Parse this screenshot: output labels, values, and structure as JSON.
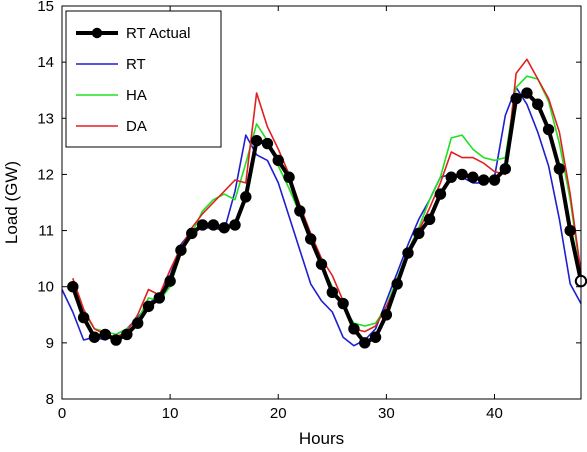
{
  "chart_data": {
    "type": "line",
    "title": "",
    "xlabel": "Hours",
    "ylabel": "Load (GW)",
    "xlim": [
      0,
      48
    ],
    "ylim": [
      8,
      15
    ],
    "xticks": [
      0,
      10,
      20,
      30,
      40
    ],
    "yticks": [
      8,
      9,
      10,
      11,
      12,
      13,
      14,
      15
    ],
    "grid": false,
    "legend_position": "top-left",
    "series": [
      {
        "name": "RT Actual",
        "color": "#000000",
        "marker": "circle",
        "x": [
          1,
          2,
          3,
          4,
          5,
          6,
          7,
          8,
          9,
          10,
          11,
          12,
          13,
          14,
          15,
          16,
          17,
          18,
          19,
          20,
          21,
          22,
          23,
          24,
          25,
          26,
          27,
          28,
          29,
          30,
          31,
          32,
          33,
          34,
          35,
          36,
          37,
          38,
          39,
          40,
          41,
          42,
          43,
          44,
          45,
          46,
          47,
          48
        ],
        "values": [
          10.0,
          9.45,
          9.1,
          9.15,
          9.05,
          9.15,
          9.35,
          9.65,
          9.8,
          10.1,
          10.65,
          10.95,
          11.1,
          11.1,
          11.05,
          11.1,
          11.6,
          12.6,
          12.55,
          12.25,
          11.95,
          11.35,
          10.85,
          10.4,
          9.9,
          9.7,
          9.25,
          9.0,
          9.1,
          9.5,
          10.05,
          10.6,
          10.95,
          11.2,
          11.65,
          11.95,
          12.0,
          11.95,
          11.9,
          11.9,
          12.1,
          13.35,
          13.45,
          13.25,
          12.8,
          12.1,
          11.0,
          10.1
        ]
      },
      {
        "name": "RT",
        "color": "#1f1fcf",
        "x": [
          0,
          1,
          2,
          3,
          4,
          5,
          6,
          7,
          8,
          9,
          10,
          11,
          12,
          13,
          14,
          15,
          16,
          17,
          18,
          19,
          20,
          21,
          22,
          23,
          24,
          25,
          26,
          27,
          28,
          29,
          30,
          31,
          32,
          33,
          34,
          35,
          36,
          37,
          38,
          39,
          40,
          41,
          42,
          43,
          44,
          45,
          46,
          47,
          48
        ],
        "values": [
          9.95,
          9.55,
          9.05,
          9.1,
          9.05,
          9.15,
          9.25,
          9.45,
          9.7,
          9.85,
          10.2,
          10.75,
          11.0,
          11.05,
          11.05,
          11.0,
          11.7,
          12.7,
          12.35,
          12.25,
          11.85,
          11.25,
          10.65,
          10.05,
          9.75,
          9.55,
          9.1,
          8.95,
          9.05,
          9.25,
          9.75,
          10.25,
          10.75,
          11.2,
          11.55,
          11.95,
          12.0,
          11.95,
          11.85,
          11.85,
          11.95,
          13.05,
          13.55,
          13.25,
          12.75,
          12.15,
          11.2,
          10.05,
          9.7
        ]
      },
      {
        "name": "HA",
        "color": "#20e020",
        "x": [
          1,
          2,
          3,
          4,
          5,
          6,
          7,
          8,
          9,
          10,
          11,
          12,
          13,
          14,
          15,
          16,
          17,
          18,
          19,
          20,
          21,
          22,
          23,
          24,
          25,
          26,
          27,
          28,
          29,
          30,
          31,
          32,
          33,
          34,
          35,
          36,
          37,
          38,
          39,
          40,
          41,
          42,
          43,
          44,
          45,
          46,
          47,
          48
        ],
        "values": [
          10.05,
          9.55,
          9.25,
          9.2,
          9.15,
          9.25,
          9.4,
          9.8,
          9.75,
          10.0,
          10.6,
          10.95,
          11.35,
          11.55,
          11.65,
          11.55,
          12.2,
          12.9,
          12.6,
          12.15,
          11.75,
          11.3,
          10.8,
          10.4,
          10.0,
          9.65,
          9.35,
          9.3,
          9.35,
          9.65,
          10.15,
          10.65,
          11.05,
          11.55,
          11.95,
          12.65,
          12.7,
          12.45,
          12.3,
          12.25,
          12.3,
          13.55,
          13.75,
          13.7,
          13.3,
          12.55,
          11.55,
          10.2
        ]
      },
      {
        "name": "DA",
        "color": "#e02020",
        "x": [
          1,
          2,
          3,
          4,
          5,
          6,
          7,
          8,
          9,
          10,
          11,
          12,
          13,
          14,
          15,
          16,
          17,
          18,
          19,
          20,
          21,
          22,
          23,
          24,
          25,
          26,
          27,
          28,
          29,
          30,
          31,
          32,
          33,
          34,
          35,
          36,
          37,
          38,
          39,
          40,
          41,
          42,
          43,
          44,
          45,
          46,
          47,
          48
        ],
        "values": [
          10.15,
          9.6,
          9.25,
          9.15,
          9.1,
          9.2,
          9.5,
          9.95,
          9.85,
          10.3,
          10.7,
          11.05,
          11.3,
          11.5,
          11.7,
          11.9,
          11.85,
          13.45,
          12.85,
          12.45,
          12.0,
          11.45,
          10.95,
          10.5,
          10.2,
          9.75,
          9.25,
          9.2,
          9.3,
          9.65,
          10.05,
          10.65,
          11.0,
          11.4,
          11.85,
          12.4,
          12.3,
          12.3,
          12.2,
          12.05,
          12.0,
          13.8,
          14.05,
          13.7,
          13.35,
          12.75,
          11.65,
          10.25
        ]
      }
    ]
  }
}
